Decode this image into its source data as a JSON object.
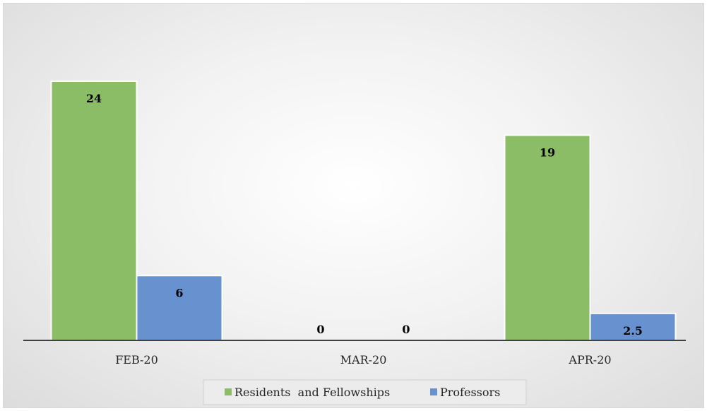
{
  "chart_data": {
    "type": "bar",
    "title": "",
    "xlabel": "",
    "ylabel": "",
    "categories": [
      "FEB-20",
      "MAR-20",
      "APR-20"
    ],
    "series": [
      {
        "name": "Residents  and Fellowships",
        "values": [
          24,
          0,
          19
        ],
        "color": "#8abd66"
      },
      {
        "name": "Professors",
        "values": [
          6,
          0,
          2.5
        ],
        "color": "#6891d0"
      }
    ],
    "value_labels": [
      [
        "24",
        "0",
        "19"
      ],
      [
        "6",
        "0",
        "2.5"
      ]
    ],
    "ylim": [
      0,
      25
    ],
    "grid": false,
    "legend": "bottom",
    "axis_color": "#404040"
  }
}
